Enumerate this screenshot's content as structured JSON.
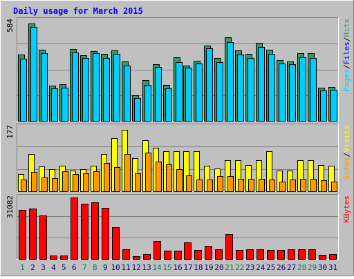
{
  "title": "Daily usage for March 2015",
  "chart_data": [
    {
      "type": "bar",
      "panel": "top",
      "categories": [
        "1",
        "2",
        "3",
        "4",
        "5",
        "6",
        "7",
        "8",
        "9",
        "10",
        "11",
        "12",
        "13",
        "14",
        "15",
        "16",
        "17",
        "18",
        "19",
        "20",
        "21",
        "22",
        "23",
        "24",
        "25",
        "26",
        "27",
        "28",
        "29",
        "30",
        "31"
      ],
      "max_label": "584",
      "ylim": [
        0,
        584
      ],
      "grid": true,
      "legend": "right",
      "series": [
        {
          "name": "Hits",
          "color": "#339966",
          "values": [
            387,
            566,
            413,
            207,
            213,
            417,
            384,
            405,
            390,
            410,
            346,
            151,
            237,
            332,
            210,
            371,
            322,
            352,
            440,
            366,
            488,
            412,
            389,
            455,
            414,
            354,
            348,
            394,
            394,
            195,
            198
          ]
        },
        {
          "name": "Files",
          "color": "#0000ff",
          "values": [
            0,
            0,
            0,
            0,
            0,
            0,
            0,
            0,
            0,
            0,
            0,
            0,
            0,
            0,
            0,
            0,
            0,
            0,
            0,
            0,
            0,
            0,
            0,
            0,
            0,
            0,
            0,
            0,
            0,
            0,
            0
          ]
        },
        {
          "name": "Pages",
          "color": "#00ccff",
          "values": [
            374,
            560,
            407,
            202,
            207,
            410,
            378,
            405,
            379,
            403,
            335,
            146,
            220,
            326,
            203,
            356,
            322,
            347,
            434,
            355,
            470,
            399,
            379,
            445,
            403,
            346,
            342,
            383,
            380,
            190,
            192
          ]
        }
      ],
      "legend_items": [
        {
          "label": "Pages",
          "color": "#00ccff"
        },
        {
          "label": "/",
          "color": "#000000"
        },
        {
          "label": "Files",
          "color": "#0000ff"
        },
        {
          "label": "/",
          "color": "#000000"
        },
        {
          "label": "Hits",
          "color": "#339966"
        }
      ]
    },
    {
      "type": "bar",
      "panel": "middle",
      "categories": [
        "1",
        "2",
        "3",
        "4",
        "5",
        "6",
        "7",
        "8",
        "9",
        "10",
        "11",
        "12",
        "13",
        "14",
        "15",
        "16",
        "17",
        "18",
        "19",
        "20",
        "21",
        "22",
        "23",
        "24",
        "25",
        "26",
        "27",
        "28",
        "29",
        "30",
        "31"
      ],
      "max_label": "177",
      "ylim": [
        0,
        177
      ],
      "grid": true,
      "legend": "right",
      "series": [
        {
          "name": "Visits",
          "color": "#ffff00",
          "values": [
            47,
            102,
            69,
            61,
            70,
            58,
            61,
            70,
            103,
            146,
            170,
            92,
            141,
            120,
            111,
            110,
            110,
            110,
            70,
            62,
            86,
            86,
            72,
            86,
            110,
            58,
            58,
            86,
            86,
            72,
            70
          ]
        },
        {
          "name": "Sites",
          "color": "#ff9900",
          "values": [
            32,
            53,
            38,
            36,
            56,
            48,
            50,
            56,
            78,
            66,
            102,
            49,
            106,
            82,
            75,
            60,
            44,
            32,
            32,
            42,
            42,
            34,
            34,
            34,
            32,
            27,
            32,
            34,
            34,
            30,
            27
          ]
        }
      ],
      "legend_items": [
        {
          "label": "Sites",
          "color": "#ff9900"
        },
        {
          "label": "/",
          "color": "#000000"
        },
        {
          "label": "Visits",
          "color": "#ffff00"
        }
      ]
    },
    {
      "type": "bar",
      "panel": "bottom",
      "categories": [
        "1",
        "2",
        "3",
        "4",
        "5",
        "6",
        "7",
        "8",
        "9",
        "10",
        "11",
        "12",
        "13",
        "14",
        "15",
        "16",
        "17",
        "18",
        "19",
        "20",
        "21",
        "22",
        "23",
        "24",
        "25",
        "26",
        "27",
        "28",
        "29",
        "30",
        "31"
      ],
      "max_label": "31082",
      "ylim": [
        0,
        31082
      ],
      "grid": true,
      "legend": "right",
      "series": [
        {
          "name": "KBytes",
          "color": "#ff0000",
          "values": [
            24945,
            25604,
            21962,
            1708,
            1878,
            31082,
            27837,
            28666,
            25888,
            16100,
            4870,
            1494,
            2416,
            8925,
            4272,
            4270,
            8455,
            4420,
            6663,
            4784,
            12494,
            4672,
            4842,
            4893,
            4525,
            4370,
            4895,
            4855,
            4813,
            2196,
            2475
          ]
        }
      ],
      "legend_items": [
        {
          "label": "KBytes",
          "color": "#ff0000"
        }
      ]
    }
  ],
  "x_axis": {
    "labels": [
      "1",
      "2",
      "3",
      "4",
      "5",
      "6",
      "7",
      "8",
      "9",
      "10",
      "11",
      "12",
      "13",
      "14",
      "15",
      "16",
      "17",
      "18",
      "19",
      "20",
      "21",
      "22",
      "23",
      "24",
      "25",
      "26",
      "27",
      "28",
      "29",
      "30",
      "31"
    ],
    "weekend_days": [
      "1",
      "7",
      "8",
      "14",
      "15",
      "21",
      "22",
      "28",
      "29"
    ],
    "weekend_color": "#00805c",
    "weekday_color": "#000080"
  },
  "colors": {
    "background": "#c0c0c0",
    "title": "#0000ff",
    "border_light": "#ffffff",
    "border_dark": "#808080"
  }
}
